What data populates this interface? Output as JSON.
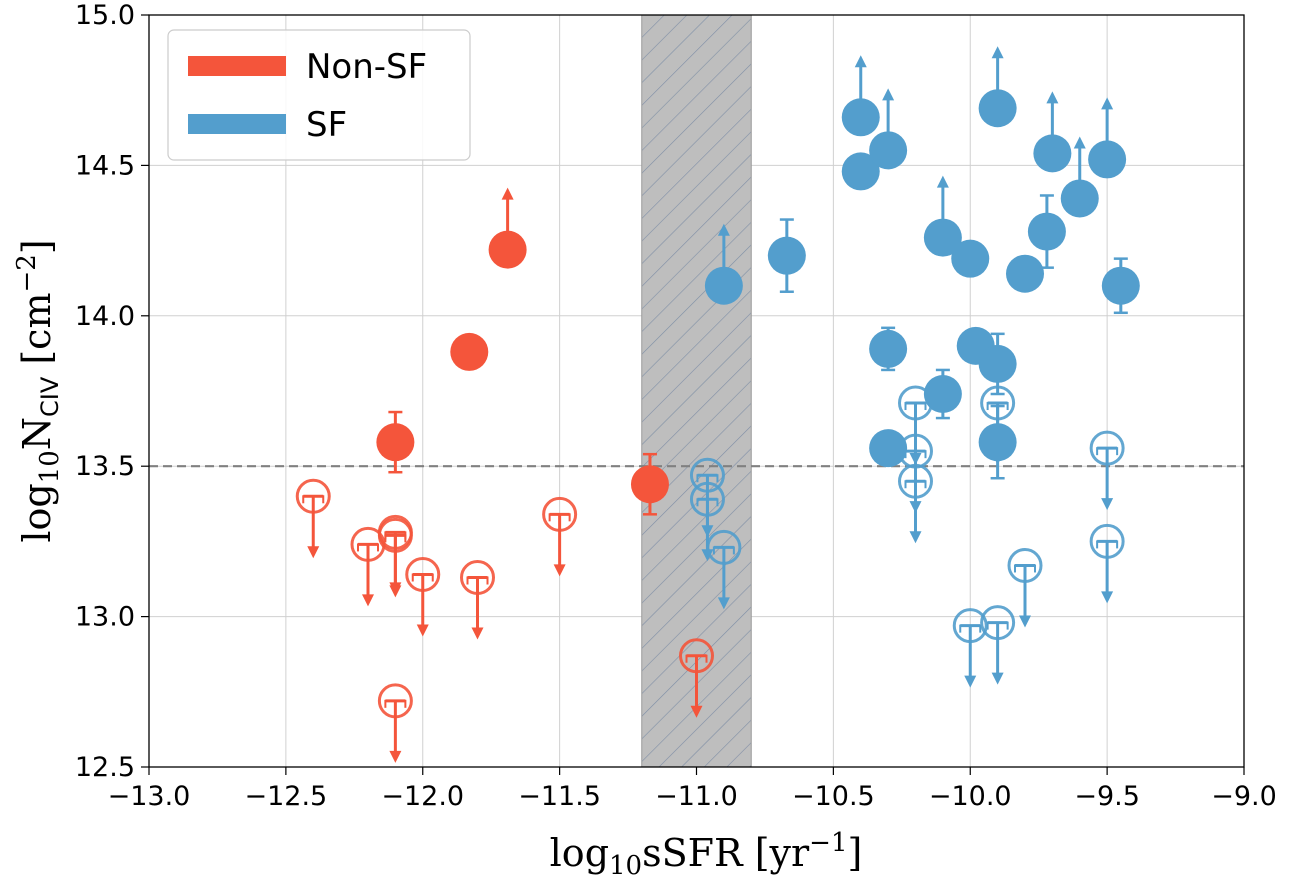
{
  "chart_data": {
    "type": "scatter",
    "xlabel": "log₁₀sSFR [yr⁻¹]",
    "ylabel": "log₁₀N_CIV [cm⁻²]",
    "xlabel_parts": {
      "pre": "log",
      "sub": "10",
      "mid": "sSFR [yr",
      "sup": "−1",
      "post": "]"
    },
    "ylabel_parts": {
      "pre": "log",
      "sub": "10",
      "mid": "N",
      "sub2": "CIV",
      "mid2": " [cm",
      "sup": "−2",
      "post": "]"
    },
    "xlim": [
      -13.0,
      -9.0
    ],
    "ylim": [
      12.5,
      15.0
    ],
    "x_ticks": [
      -13.0,
      -12.5,
      -12.0,
      -11.5,
      -11.0,
      -10.5,
      -10.0,
      -9.5,
      -9.0
    ],
    "x_tick_labels": [
      "−13.0",
      "−12.5",
      "−12.0",
      "−11.5",
      "−11.0",
      "−10.5",
      "−10.0",
      "−9.5",
      "−9.0"
    ],
    "y_ticks": [
      12.5,
      13.0,
      13.5,
      14.0,
      14.5,
      15.0
    ],
    "y_tick_labels": [
      "12.5",
      "13.0",
      "13.5",
      "14.0",
      "14.5",
      "15.0"
    ],
    "grid": true,
    "legend_position": "top-left",
    "threshold_line": {
      "y": 13.5,
      "style": "dashed",
      "color": "#808080"
    },
    "shaded_band": {
      "x": [
        -11.2,
        -10.8
      ],
      "color": "#bebebe",
      "hatch": "diagonal"
    },
    "series": [
      {
        "name": "Non-SF",
        "color": "#f4553b",
        "detections": [
          {
            "x": -12.1,
            "y": 13.58,
            "err_up": 0.1,
            "err_down": 0.1
          },
          {
            "x": -11.83,
            "y": 13.88
          },
          {
            "x": -11.69,
            "y": 14.22,
            "lower_limit": true
          },
          {
            "x": -11.17,
            "y": 13.44,
            "err_up": 0.1,
            "err_down": 0.1
          }
        ],
        "upper_limits": [
          {
            "x": -12.4,
            "y": 13.4
          },
          {
            "x": -12.2,
            "y": 13.24
          },
          {
            "x": -12.1,
            "y": 13.28
          },
          {
            "x": -12.1,
            "y": 13.27
          },
          {
            "x": -12.0,
            "y": 13.14
          },
          {
            "x": -11.8,
            "y": 13.13
          },
          {
            "x": -11.5,
            "y": 13.34
          },
          {
            "x": -12.1,
            "y": 12.72
          },
          {
            "x": -11.0,
            "y": 12.87
          }
        ]
      },
      {
        "name": "SF",
        "color": "#539ecd",
        "detections": [
          {
            "x": -10.9,
            "y": 14.1,
            "lower_limit": true
          },
          {
            "x": -10.67,
            "y": 14.2,
            "err_up": 0.12,
            "err_down": 0.12
          },
          {
            "x": -10.4,
            "y": 14.66,
            "lower_limit": true
          },
          {
            "x": -10.4,
            "y": 14.48
          },
          {
            "x": -10.3,
            "y": 14.55,
            "lower_limit": true
          },
          {
            "x": -10.3,
            "y": 13.89,
            "err_up": 0.07,
            "err_down": 0.07
          },
          {
            "x": -10.3,
            "y": 13.56
          },
          {
            "x": -10.1,
            "y": 14.26,
            "lower_limit": true
          },
          {
            "x": -10.1,
            "y": 13.74,
            "err_up": 0.08,
            "err_down": 0.08
          },
          {
            "x": -10.0,
            "y": 14.19
          },
          {
            "x": -9.98,
            "y": 13.9
          },
          {
            "x": -9.9,
            "y": 14.69,
            "lower_limit": true
          },
          {
            "x": -9.9,
            "y": 13.84,
            "err_up": 0.1,
            "err_down": 0.1
          },
          {
            "x": -9.9,
            "y": 13.58,
            "err_up": 0.12,
            "err_down": 0.12
          },
          {
            "x": -9.8,
            "y": 14.14
          },
          {
            "x": -9.72,
            "y": 14.28,
            "err_up": 0.12,
            "err_down": 0.12
          },
          {
            "x": -9.7,
            "y": 14.54,
            "lower_limit": true
          },
          {
            "x": -9.6,
            "y": 14.39,
            "lower_limit": true
          },
          {
            "x": -9.5,
            "y": 14.52,
            "lower_limit": true
          },
          {
            "x": -9.45,
            "y": 14.1,
            "err_up": 0.09,
            "err_down": 0.09
          }
        ],
        "upper_limits": [
          {
            "x": -10.96,
            "y": 13.47
          },
          {
            "x": -10.96,
            "y": 13.39
          },
          {
            "x": -10.9,
            "y": 13.23
          },
          {
            "x": -10.2,
            "y": 13.71
          },
          {
            "x": -10.2,
            "y": 13.55
          },
          {
            "x": -10.2,
            "y": 13.45
          },
          {
            "x": -9.9,
            "y": 13.71
          },
          {
            "x": -9.8,
            "y": 13.17
          },
          {
            "x": -9.5,
            "y": 13.56
          },
          {
            "x": -9.5,
            "y": 13.25
          },
          {
            "x": -10.0,
            "y": 12.97
          },
          {
            "x": -9.9,
            "y": 12.98
          }
        ]
      }
    ]
  }
}
